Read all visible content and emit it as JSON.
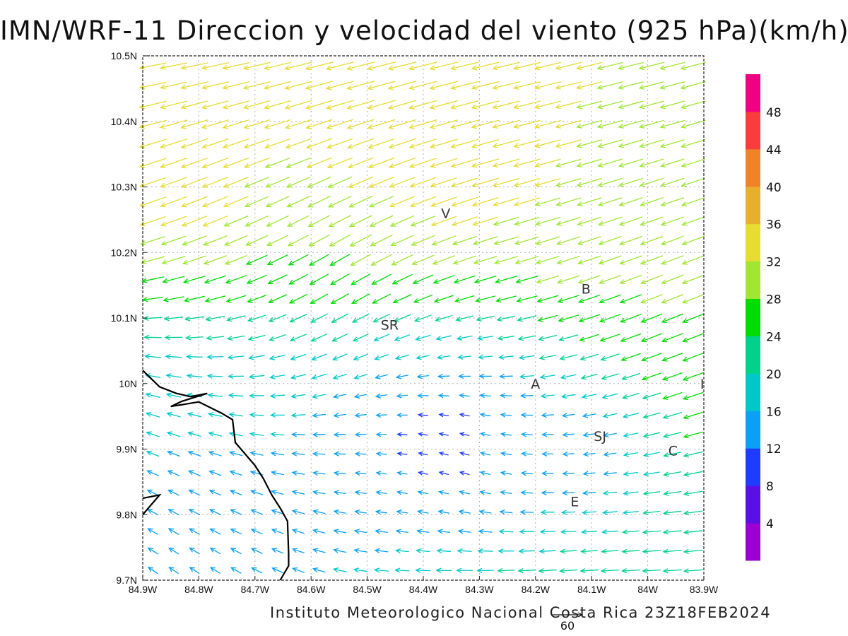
{
  "chart_data": {
    "type": "vector_field",
    "title": "IMN/WRF-11 Direccion y velocidad del viento (925 hPa)(km/h)",
    "credit": "Instituto Meteorologico Nacional Costa Rica 23Z18FEB2024",
    "reference_vector": {
      "label": "60",
      "value": 60
    },
    "x_axis": {
      "range": [
        -84.9,
        -83.9
      ],
      "ticks": [
        "84.9W",
        "84.8W",
        "84.7W",
        "84.6W",
        "84.5W",
        "84.4W",
        "84.3W",
        "84.2W",
        "84.1W",
        "84W",
        "83.9W"
      ]
    },
    "y_axis": {
      "range": [
        9.7,
        10.5
      ],
      "ticks": [
        "9.7N",
        "9.8N",
        "9.9N",
        "10N",
        "10.1N",
        "10.2N",
        "10.3N",
        "10.4N",
        "10.5N"
      ]
    },
    "grid": true,
    "colorbar": {
      "labels": [
        "4",
        "8",
        "12",
        "16",
        "20",
        "24",
        "28",
        "32",
        "36",
        "40",
        "44",
        "48"
      ],
      "label_values": [
        4,
        8,
        12,
        16,
        20,
        24,
        28,
        32,
        36,
        40,
        44,
        48
      ],
      "colors": [
        "#9b00d2",
        "#5a0fe6",
        "#1e3cff",
        "#0aa0f5",
        "#00c8c8",
        "#00d28c",
        "#00dc00",
        "#a0e632",
        "#e6dc32",
        "#e6af2d",
        "#f08228",
        "#fa3c3c",
        "#f00082"
      ]
    },
    "places": [
      {
        "name": "V",
        "lon": -84.36,
        "lat": 10.26
      },
      {
        "name": "B",
        "lon": -84.11,
        "lat": 10.145
      },
      {
        "name": "SR",
        "lon": -84.46,
        "lat": 10.09
      },
      {
        "name": "A",
        "lon": -84.2,
        "lat": 10.0
      },
      {
        "name": "SJ",
        "lon": -84.085,
        "lat": 9.92
      },
      {
        "name": "C",
        "lon": -83.955,
        "lat": 9.898
      },
      {
        "name": "E",
        "lon": -84.13,
        "lat": 9.82
      },
      {
        "name": "I",
        "lon": -83.903,
        "lat": 10.0
      }
    ],
    "coastline": [
      [
        -84.9,
        10.02
      ],
      [
        -84.87,
        9.995
      ],
      [
        -84.84,
        9.985
      ],
      [
        -84.815,
        9.98
      ],
      [
        -84.785,
        9.985
      ],
      [
        -84.83,
        9.973
      ],
      [
        -84.85,
        9.965
      ],
      [
        -84.8,
        9.972
      ],
      [
        -84.76,
        9.955
      ],
      [
        -84.74,
        9.945
      ],
      [
        -84.735,
        9.91
      ],
      [
        -84.72,
        9.895
      ],
      [
        -84.7,
        9.875
      ],
      [
        -84.685,
        9.855
      ],
      [
        -84.67,
        9.83
      ],
      [
        -84.655,
        9.81
      ],
      [
        -84.642,
        9.79
      ],
      [
        -84.64,
        9.74
      ],
      [
        -84.64,
        9.722
      ],
      [
        -84.655,
        9.7
      ]
    ],
    "coastline_inlet": [
      [
        -84.9,
        9.825
      ],
      [
        -84.87,
        9.83
      ],
      [
        -84.9,
        9.8
      ]
    ],
    "vector_grid": {
      "lon_range": [
        -84.9,
        -83.9
      ],
      "lat_range": [
        9.7,
        10.5
      ],
      "cols": 27,
      "rows": 27,
      "regimes": [
        {
          "lon": -84.65,
          "lat": 10.47,
          "u": -34,
          "v": -5,
          "r": 0.45
        },
        {
          "lon": -84.15,
          "lat": 10.45,
          "u": -30,
          "v": -8,
          "r": 0.45
        },
        {
          "lon": -84.45,
          "lat": 10.33,
          "u": -42,
          "v": -12,
          "r": 0.16
        },
        {
          "lon": -84.82,
          "lat": 10.25,
          "u": -42,
          "v": -28,
          "r": 0.1
        },
        {
          "lon": -84.55,
          "lat": 10.18,
          "u": -8,
          "v": -32,
          "r": 0.14
        },
        {
          "lon": -84.0,
          "lat": 10.1,
          "u": -22,
          "v": -14,
          "r": 0.18
        },
        {
          "lon": -84.85,
          "lat": 10.05,
          "u": -14,
          "v": 8,
          "r": 0.18
        },
        {
          "lon": -84.8,
          "lat": 9.78,
          "u": -4,
          "v": 12,
          "r": 0.2
        },
        {
          "lon": -84.3,
          "lat": 9.95,
          "u": 3,
          "v": 14,
          "r": 0.12
        },
        {
          "lon": -84.0,
          "lat": 9.78,
          "u": -20,
          "v": 2,
          "r": 0.14
        },
        {
          "lon": -84.45,
          "lat": 9.95,
          "u": -2,
          "v": 4,
          "r": 0.12
        },
        {
          "lon": -84.1,
          "lat": 9.9,
          "u": 0,
          "v": 2,
          "r": 0.08
        }
      ]
    }
  }
}
